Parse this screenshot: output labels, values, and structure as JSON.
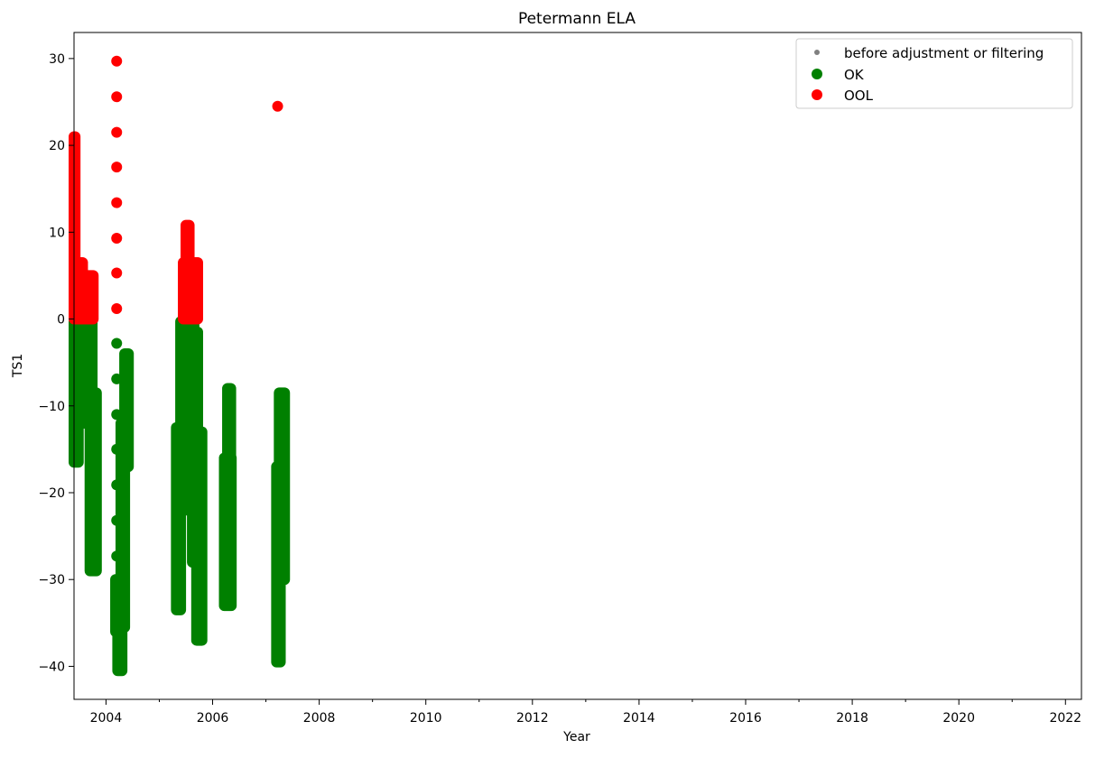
{
  "chart_data": {
    "type": "scatter",
    "title": "Petermann ELA",
    "xlabel": "Year",
    "ylabel": "TS1",
    "xlim": [
      2003.4,
      2022.3
    ],
    "ylim": [
      -43.8,
      33.0
    ],
    "x_major_ticks": [
      2004,
      2006,
      2008,
      2010,
      2012,
      2014,
      2016,
      2018,
      2020,
      2022
    ],
    "x_minor_ticks": [
      2005,
      2007,
      2009,
      2011,
      2013,
      2015,
      2017,
      2019,
      2021
    ],
    "x_tick_labels": [
      "2004",
      "2006",
      "2008",
      "2010",
      "2012",
      "2014",
      "2016",
      "2018",
      "2020",
      "2022"
    ],
    "y_major_ticks": [
      -40,
      -30,
      -20,
      -10,
      0,
      10,
      20,
      30
    ],
    "y_tick_labels": [
      "−40",
      "−30",
      "−20",
      "−10",
      "0",
      "10",
      "20",
      "30"
    ],
    "grid": false,
    "legend_position": "top-right",
    "legend": [
      {
        "label": "before adjustment or filtering",
        "color": "#808080",
        "marker": "small-dot"
      },
      {
        "label": "OK",
        "color": "#008000",
        "marker": "dot"
      },
      {
        "label": "OOL",
        "color": "#ff0000",
        "marker": "dot"
      }
    ],
    "series": [
      {
        "name": "OK",
        "color": "#008000",
        "segments": [
          {
            "x0": 2003.4,
            "x1": 2003.48,
            "ymin": -16.5,
            "ymax": -0.3
          },
          {
            "x0": 2003.48,
            "x1": 2003.74,
            "ymin": -12.0,
            "ymax": -0.3
          },
          {
            "x0": 2003.7,
            "x1": 2003.82,
            "ymin": -29.0,
            "ymax": -8.5
          },
          {
            "x0": 2004.18,
            "x1": 2004.22,
            "ymin": -36.0,
            "ymax": -30.0
          },
          {
            "x0": 2004.22,
            "x1": 2004.3,
            "ymin": -40.5,
            "ymax": -34.0
          },
          {
            "x0": 2004.28,
            "x1": 2004.35,
            "ymin": -35.5,
            "ymax": -12.0
          },
          {
            "x0": 2004.35,
            "x1": 2004.42,
            "ymin": -17.0,
            "ymax": -4.0
          },
          {
            "x0": 2005.32,
            "x1": 2005.4,
            "ymin": -33.5,
            "ymax": -12.5
          },
          {
            "x0": 2005.4,
            "x1": 2005.52,
            "ymin": -22.0,
            "ymax": -0.3
          },
          {
            "x0": 2005.52,
            "x1": 2005.65,
            "ymin": -12.0,
            "ymax": -0.3
          },
          {
            "x0": 2005.62,
            "x1": 2005.72,
            "ymin": -28.0,
            "ymax": -1.5
          },
          {
            "x0": 2005.7,
            "x1": 2005.8,
            "ymin": -37.0,
            "ymax": -13.0
          },
          {
            "x0": 2006.22,
            "x1": 2006.35,
            "ymin": -33.0,
            "ymax": -16.0
          },
          {
            "x0": 2006.28,
            "x1": 2006.34,
            "ymin": -20.0,
            "ymax": -8.0
          },
          {
            "x0": 2007.2,
            "x1": 2007.27,
            "ymin": -39.5,
            "ymax": -17.0
          },
          {
            "x0": 2007.25,
            "x1": 2007.35,
            "ymin": -30.0,
            "ymax": -8.5
          }
        ],
        "points": [
          {
            "x": 2004.2,
            "y": -2.8
          },
          {
            "x": 2004.2,
            "y": -6.9
          },
          {
            "x": 2004.2,
            "y": -11.0
          },
          {
            "x": 2004.2,
            "y": -15.0
          },
          {
            "x": 2004.2,
            "y": -19.1
          },
          {
            "x": 2004.2,
            "y": -23.2
          },
          {
            "x": 2004.2,
            "y": -27.3
          }
        ]
      },
      {
        "name": "OOL",
        "color": "#ff0000",
        "segments": [
          {
            "x0": 2003.4,
            "x1": 2003.42,
            "ymin": 0.0,
            "ymax": 21.0
          },
          {
            "x0": 2003.42,
            "x1": 2003.76,
            "ymin": 0.0,
            "ymax": 5.0
          },
          {
            "x0": 2003.5,
            "x1": 2003.56,
            "ymin": 0.0,
            "ymax": 6.5
          },
          {
            "x0": 2005.45,
            "x1": 2005.72,
            "ymin": 0.0,
            "ymax": 6.5
          },
          {
            "x0": 2005.5,
            "x1": 2005.56,
            "ymin": 0.0,
            "ymax": 10.8
          }
        ],
        "points": [
          {
            "x": 2004.2,
            "y": 29.7
          },
          {
            "x": 2004.2,
            "y": 25.6
          },
          {
            "x": 2004.2,
            "y": 21.5
          },
          {
            "x": 2004.2,
            "y": 17.5
          },
          {
            "x": 2004.2,
            "y": 13.4
          },
          {
            "x": 2004.2,
            "y": 9.3
          },
          {
            "x": 2004.2,
            "y": 5.3
          },
          {
            "x": 2004.2,
            "y": 1.2
          },
          {
            "x": 2007.22,
            "y": 24.5
          }
        ]
      }
    ]
  }
}
